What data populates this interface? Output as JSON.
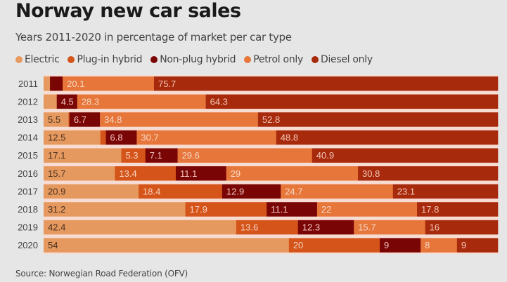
{
  "chart_data": {
    "type": "bar",
    "orientation": "horizontal",
    "stacked": true,
    "title": "Norway new car sales",
    "subtitle": "Years 2011-2020 in percentage of market per car type",
    "source": "Source: Norwegian Road Federation (OFV)",
    "xlabel": "",
    "ylabel": "",
    "xlim": [
      0,
      100
    ],
    "grid": false,
    "legend_position": "top-left",
    "categories": [
      "2011",
      "2012",
      "2013",
      "2014",
      "2015",
      "2016",
      "2017",
      "2018",
      "2019",
      "2020"
    ],
    "series": [
      {
        "name": "Electric",
        "color": "#e6995e",
        "label_color": "#4a3020",
        "values": [
          1.4,
          2.9,
          5.5,
          12.5,
          17.1,
          15.7,
          20.9,
          31.2,
          42.4,
          54
        ],
        "labels": [
          null,
          null,
          "5.5",
          "12.5",
          "17.1",
          "15.7",
          "20.9",
          "31.2",
          "42.4",
          "54"
        ]
      },
      {
        "name": "Plug-in hybrid",
        "color": "#d4541a",
        "label_color": "#f6d2c0",
        "values": [
          0,
          0,
          0.2,
          1.2,
          5.3,
          13.4,
          18.4,
          17.9,
          13.6,
          20
        ],
        "labels": [
          null,
          null,
          null,
          null,
          "5.3",
          "13.4",
          "18.4",
          "17.9",
          "13.6",
          "20"
        ]
      },
      {
        "name": "Non-plug hybrid",
        "color": "#7a0505",
        "label_color": "#f2c4c0",
        "values": [
          2.8,
          4.5,
          6.7,
          6.8,
          7.1,
          11.1,
          12.9,
          11.1,
          12.3,
          9
        ],
        "labels": [
          null,
          "4.5",
          "6.7",
          "6.8",
          "7.1",
          "11.1",
          "12.9",
          "11.1",
          "12.3",
          "9"
        ]
      },
      {
        "name": "Petrol only",
        "color": "#e6763a",
        "label_color": "#f8d6c4",
        "values": [
          20.1,
          28.3,
          34.8,
          30.7,
          29.6,
          29,
          24.7,
          22,
          15.7,
          8
        ],
        "labels": [
          "20.1",
          "28.3",
          "34.8",
          "30.7",
          "29.6",
          "29",
          "24.7",
          "22",
          "15.7",
          "8"
        ]
      },
      {
        "name": "Diesel only",
        "color": "#a82a0c",
        "label_color": "#f2c8b8",
        "values": [
          75.7,
          64.3,
          52.8,
          48.8,
          40.9,
          30.8,
          23.1,
          17.8,
          16,
          9
        ],
        "labels": [
          "75.7",
          "64.3",
          "52.8",
          "48.8",
          "40.9",
          "30.8",
          "23.1",
          "17.8",
          "16",
          "9"
        ]
      }
    ]
  },
  "colors": {
    "background": "#e6e6e6",
    "bar_gap": "#f7dcd3"
  }
}
